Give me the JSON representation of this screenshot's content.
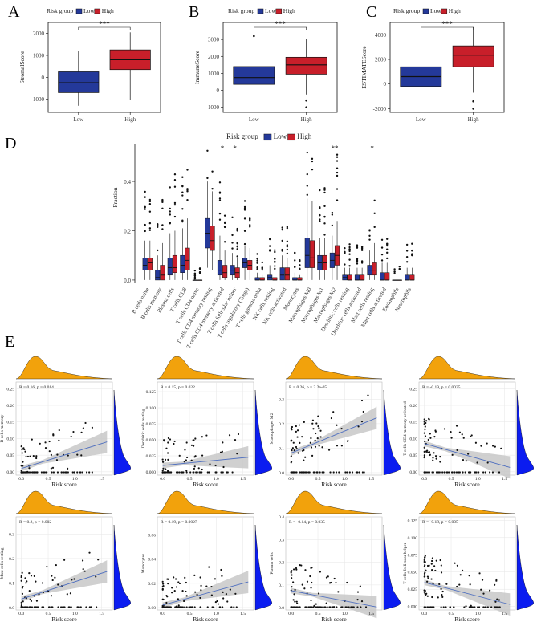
{
  "panels": {
    "A": "A",
    "B": "B",
    "C": "C",
    "D": "D",
    "E": "E"
  },
  "colors": {
    "low": "#24399a",
    "high": "#c81f2a",
    "density_x": "#f2a20c",
    "density_y": "#0b1cf0",
    "fit": "#4f6fbf",
    "band": "#c8c8c8"
  },
  "legend": {
    "title": "Risk group",
    "low": "Low",
    "high": "High"
  },
  "chart_data": [
    {
      "type": "box",
      "id": "A",
      "ylabel": "StromalScore",
      "categories": [
        "Low",
        "High"
      ],
      "significance": "***",
      "ylim": [
        -1600,
        2500
      ],
      "yticks": [
        -1000,
        0,
        1000,
        2000
      ],
      "boxes": [
        {
          "whislo": -1300,
          "q1": -700,
          "med": -250,
          "q3": 250,
          "whishi": 1200,
          "outliers": []
        },
        {
          "whislo": -1050,
          "q1": 350,
          "med": 800,
          "q3": 1250,
          "whishi": 2050,
          "outliers": []
        }
      ]
    },
    {
      "type": "box",
      "id": "B",
      "ylabel": "ImmuneScore",
      "categories": [
        "Low",
        "High"
      ],
      "significance": "***",
      "ylim": [
        -1300,
        4000
      ],
      "yticks": [
        -1000,
        0,
        1000,
        2000,
        3000
      ],
      "boxes": [
        {
          "whislo": -500,
          "q1": 350,
          "med": 750,
          "q3": 1400,
          "whishi": 2850,
          "outliers": [
            3200
          ]
        },
        {
          "whislo": -250,
          "q1": 950,
          "med": 1500,
          "q3": 1950,
          "whishi": 3050,
          "outliers": [
            -600,
            -1000
          ]
        }
      ]
    },
    {
      "type": "box",
      "id": "C",
      "ylabel": "ESTIMATEScore",
      "categories": [
        "Low",
        "High"
      ],
      "significance": "***",
      "ylim": [
        -2300,
        5000
      ],
      "yticks": [
        -2000,
        0,
        2000,
        4000
      ],
      "boxes": [
        {
          "whislo": -1700,
          "q1": -200,
          "med": 600,
          "q3": 1400,
          "whishi": 3600,
          "outliers": []
        },
        {
          "whislo": -700,
          "q1": 1400,
          "med": 2350,
          "q3": 3100,
          "whishi": 4600,
          "outliers": [
            -1400,
            -2000
          ]
        }
      ]
    },
    {
      "type": "box",
      "id": "D",
      "ylabel": "Fraction",
      "ylim": [
        -0.01,
        0.55
      ],
      "yticks": [
        0.0,
        0.2,
        0.4
      ],
      "categories": [
        "B cells naive",
        "B cells memory",
        "Plasma cells",
        "T cells CD8",
        "T cells CD4 naive",
        "T cells CD4 memory resting",
        "T cells CD4 memory activated",
        "T cells follicular helper",
        "T cells regulatory (Tregs)",
        "T cells gamma delta",
        "NK cells resting",
        "NK cells activated",
        "Monocytes",
        "Macrophages M0",
        "Macrophages M1",
        "Macrophages M2",
        "Dendritic cells resting",
        "Dendritic cells activated",
        "Mast cells resting",
        "Mast cells activated",
        "Eosinophils",
        "Neutrophils"
      ],
      "significance": [
        "",
        "",
        "",
        "",
        "",
        "",
        "*",
        "*",
        "",
        "",
        "",
        "",
        "",
        "",
        "",
        "**",
        "",
        "",
        "*",
        "",
        "",
        ""
      ],
      "low": [
        {
          "whislo": 0.0,
          "q1": 0.04,
          "med": 0.06,
          "q3": 0.09,
          "whishi": 0.16
        },
        {
          "whislo": 0.0,
          "q1": 0.0,
          "med": 0.01,
          "q3": 0.04,
          "whishi": 0.1
        },
        {
          "whislo": 0.0,
          "q1": 0.02,
          "med": 0.05,
          "q3": 0.09,
          "whishi": 0.19
        },
        {
          "whislo": 0.0,
          "q1": 0.03,
          "med": 0.06,
          "q3": 0.1,
          "whishi": 0.21
        },
        {
          "whislo": 0.0,
          "q1": 0.0,
          "med": 0.0,
          "q3": 0.0,
          "whishi": 0.0
        },
        {
          "whislo": 0.05,
          "q1": 0.13,
          "med": 0.19,
          "q3": 0.25,
          "whishi": 0.4
        },
        {
          "whislo": 0.0,
          "q1": 0.02,
          "med": 0.04,
          "q3": 0.08,
          "whishi": 0.18
        },
        {
          "whislo": 0.0,
          "q1": 0.02,
          "med": 0.04,
          "q3": 0.06,
          "whishi": 0.11
        },
        {
          "whislo": 0.0,
          "q1": 0.05,
          "med": 0.07,
          "q3": 0.09,
          "whishi": 0.14
        },
        {
          "whislo": 0.0,
          "q1": 0.0,
          "med": 0.0,
          "q3": 0.01,
          "whishi": 0.03
        },
        {
          "whislo": 0.0,
          "q1": 0.0,
          "med": 0.01,
          "q3": 0.02,
          "whishi": 0.06
        },
        {
          "whislo": 0.0,
          "q1": 0.0,
          "med": 0.02,
          "q3": 0.05,
          "whishi": 0.1
        },
        {
          "whislo": 0.0,
          "q1": 0.0,
          "med": 0.0,
          "q3": 0.01,
          "whishi": 0.03
        },
        {
          "whislo": 0.0,
          "q1": 0.05,
          "med": 0.1,
          "q3": 0.17,
          "whishi": 0.33
        },
        {
          "whislo": 0.0,
          "q1": 0.04,
          "med": 0.07,
          "q3": 0.1,
          "whishi": 0.17
        },
        {
          "whislo": 0.0,
          "q1": 0.05,
          "med": 0.08,
          "q3": 0.11,
          "whishi": 0.18
        },
        {
          "whislo": 0.0,
          "q1": 0.0,
          "med": 0.01,
          "q3": 0.02,
          "whishi": 0.05
        },
        {
          "whislo": 0.0,
          "q1": 0.0,
          "med": 0.0,
          "q3": 0.02,
          "whishi": 0.05
        },
        {
          "whislo": 0.0,
          "q1": 0.02,
          "med": 0.04,
          "q3": 0.06,
          "whishi": 0.12
        },
        {
          "whislo": 0.0,
          "q1": 0.0,
          "med": 0.0,
          "q3": 0.03,
          "whishi": 0.07
        },
        {
          "whislo": 0.0,
          "q1": 0.0,
          "med": 0.0,
          "q3": 0.0,
          "whishi": 0.0
        },
        {
          "whislo": 0.0,
          "q1": 0.0,
          "med": 0.0,
          "q3": 0.02,
          "whishi": 0.05
        }
      ],
      "high": [
        {
          "whislo": 0.0,
          "q1": 0.04,
          "med": 0.07,
          "q3": 0.09,
          "whishi": 0.16
        },
        {
          "whislo": 0.0,
          "q1": 0.0,
          "med": 0.02,
          "q3": 0.06,
          "whishi": 0.15
        },
        {
          "whislo": 0.0,
          "q1": 0.03,
          "med": 0.05,
          "q3": 0.1,
          "whishi": 0.2
        },
        {
          "whislo": 0.0,
          "q1": 0.04,
          "med": 0.08,
          "q3": 0.13,
          "whishi": 0.25
        },
        {
          "whislo": 0.0,
          "q1": 0.0,
          "med": 0.0,
          "q3": 0.0,
          "whishi": 0.0
        },
        {
          "whislo": 0.04,
          "q1": 0.12,
          "med": 0.16,
          "q3": 0.22,
          "whishi": 0.36
        },
        {
          "whislo": 0.0,
          "q1": 0.01,
          "med": 0.03,
          "q3": 0.06,
          "whishi": 0.12
        },
        {
          "whislo": 0.0,
          "q1": 0.01,
          "med": 0.03,
          "q3": 0.05,
          "whishi": 0.09
        },
        {
          "whislo": 0.0,
          "q1": 0.04,
          "med": 0.06,
          "q3": 0.08,
          "whishi": 0.13
        },
        {
          "whislo": 0.0,
          "q1": 0.0,
          "med": 0.0,
          "q3": 0.01,
          "whishi": 0.02
        },
        {
          "whislo": 0.0,
          "q1": 0.0,
          "med": 0.0,
          "q3": 0.01,
          "whishi": 0.04
        },
        {
          "whislo": 0.0,
          "q1": 0.0,
          "med": 0.02,
          "q3": 0.05,
          "whishi": 0.09
        },
        {
          "whislo": 0.0,
          "q1": 0.0,
          "med": 0.0,
          "q3": 0.01,
          "whishi": 0.02
        },
        {
          "whislo": 0.0,
          "q1": 0.05,
          "med": 0.09,
          "q3": 0.16,
          "whishi": 0.32
        },
        {
          "whislo": 0.0,
          "q1": 0.04,
          "med": 0.07,
          "q3": 0.1,
          "whishi": 0.17
        },
        {
          "whislo": 0.0,
          "q1": 0.06,
          "med": 0.1,
          "q3": 0.14,
          "whishi": 0.24
        },
        {
          "whislo": 0.0,
          "q1": 0.0,
          "med": 0.0,
          "q3": 0.02,
          "whishi": 0.05
        },
        {
          "whislo": 0.0,
          "q1": 0.0,
          "med": 0.0,
          "q3": 0.02,
          "whishi": 0.05
        },
        {
          "whislo": 0.0,
          "q1": 0.02,
          "med": 0.04,
          "q3": 0.07,
          "whishi": 0.15
        },
        {
          "whislo": 0.0,
          "q1": 0.0,
          "med": 0.0,
          "q3": 0.03,
          "whishi": 0.07
        },
        {
          "whislo": 0.0,
          "q1": 0.0,
          "med": 0.0,
          "q3": 0.0,
          "whishi": 0.0
        },
        {
          "whislo": 0.0,
          "q1": 0.0,
          "med": 0.0,
          "q3": 0.02,
          "whishi": 0.05
        }
      ]
    },
    {
      "type": "scatter",
      "id": "E1",
      "xlabel": "Risk score",
      "ylabel": "B cells memory",
      "annotation": "R = 0.16, p = 0.014",
      "xlim": [
        -0.1,
        1.7
      ],
      "ylim": [
        -0.01,
        0.27
      ],
      "xticks": [
        0.0,
        0.5,
        1.0,
        1.5
      ],
      "xticklabels": [
        "0.0",
        "0.5",
        "1.0",
        "1.5"
      ],
      "yticks": [
        0.0,
        0.05,
        0.1,
        0.15,
        0.2,
        0.25
      ],
      "yticklabels": [
        "0.00",
        "0.05",
        "0.10",
        "0.15",
        "0.20",
        "0.25"
      ],
      "fit": {
        "intercept": 0.01,
        "slope": 0.05
      }
    },
    {
      "type": "scatter",
      "id": "E2",
      "xlabel": "Risk score",
      "ylabel": "Dendritic cells resting",
      "annotation": "R = 0.15, p = 0.022",
      "xlim": [
        -0.1,
        1.7
      ],
      "ylim": [
        -0.005,
        0.14
      ],
      "xticks": [
        0.0,
        0.5,
        1.0,
        1.5
      ],
      "xticklabels": [
        "0.0",
        "0.5",
        "1.0",
        "1.5"
      ],
      "yticks": [
        0.0,
        0.025,
        0.05,
        0.075,
        0.1,
        0.125
      ],
      "yticklabels": [
        "0.000",
        "0.025",
        "0.050",
        "0.075",
        "0.100",
        "0.125"
      ],
      "fit": {
        "intercept": 0.01,
        "slope": 0.008
      }
    },
    {
      "type": "scatter",
      "id": "E3",
      "xlabel": "Risk score",
      "ylabel": "Macrophages M2",
      "annotation": "R = 0.26, p = 3.2e-05",
      "xlim": [
        -0.1,
        1.7
      ],
      "ylim": [
        -0.01,
        0.37
      ],
      "xticks": [
        0.0,
        0.5,
        1.0,
        1.5
      ],
      "xticklabels": [
        "0.0",
        "0.5",
        "1.0",
        "1.5"
      ],
      "yticks": [
        0.0,
        0.1,
        0.2,
        0.3
      ],
      "yticklabels": [
        "0.0",
        "0.1",
        "0.2",
        "0.3"
      ],
      "fit": {
        "intercept": 0.08,
        "slope": 0.09
      }
    },
    {
      "type": "scatter",
      "id": "E4",
      "xlabel": "Risk score",
      "ylabel": "T cells CD4 memory activated",
      "annotation": "R = -0.19, p = 0.0035",
      "xlim": [
        -0.1,
        1.7
      ],
      "ylim": [
        -0.01,
        0.27
      ],
      "xticks": [
        0.0,
        0.5,
        1.0,
        1.5
      ],
      "xticklabels": [
        "0.0",
        "0.5",
        "1.0",
        "1.5"
      ],
      "yticks": [
        0.0,
        0.05,
        0.1,
        0.15,
        0.2,
        0.25
      ],
      "yticklabels": [
        "0.00",
        "0.05",
        "0.10",
        "0.15",
        "0.20",
        "0.25"
      ],
      "fit": {
        "intercept": 0.085,
        "slope": -0.045
      }
    },
    {
      "type": "scatter",
      "id": "E5",
      "xlabel": "Risk score",
      "ylabel": "Mast cells resting",
      "annotation": "R = 0.2, p = 0.002",
      "xlim": [
        -0.1,
        1.7
      ],
      "ylim": [
        -0.01,
        0.37
      ],
      "xticks": [
        0.0,
        0.5,
        1.0,
        1.5
      ],
      "xticklabels": [
        "0.0",
        "0.5",
        "1.0",
        "1.5"
      ],
      "yticks": [
        0.0,
        0.1,
        0.2,
        0.3
      ],
      "yticklabels": [
        "0.0",
        "0.1",
        "0.2",
        "0.3"
      ],
      "fit": {
        "intercept": 0.035,
        "slope": 0.07
      }
    },
    {
      "type": "scatter",
      "id": "E6",
      "xlabel": "Risk score",
      "ylabel": "Monocytes",
      "annotation": "R = 0.19, p = 0.0027",
      "xlim": [
        -0.1,
        1.7
      ],
      "ylim": [
        -0.002,
        0.075
      ],
      "xticks": [
        0.0,
        0.5,
        1.0,
        1.5
      ],
      "xticklabels": [
        "0.0",
        "0.5",
        "1.0",
        "1.5"
      ],
      "yticks": [
        0.0,
        0.02,
        0.04,
        0.06
      ],
      "yticklabels": [
        "0.00",
        "0.02",
        "0.04",
        "0.06"
      ],
      "fit": {
        "intercept": 0.002,
        "slope": 0.012
      }
    },
    {
      "type": "scatter",
      "id": "E7",
      "xlabel": "Risk score",
      "ylabel": "Plasma cells",
      "annotation": "R = -0.14, p = 0.035",
      "xlim": [
        -0.1,
        1.7
      ],
      "ylim": [
        -0.01,
        0.4
      ],
      "xticks": [
        0.0,
        0.5,
        1.0,
        1.5
      ],
      "xticklabels": [
        "0.0",
        "0.5",
        "1.0",
        "1.5"
      ],
      "yticks": [
        0.0,
        0.1,
        0.2,
        0.3,
        0.4
      ],
      "yticklabels": [
        "0.0",
        "0.1",
        "0.2",
        "0.3",
        "0.4"
      ],
      "fit": {
        "intercept": 0.075,
        "slope": -0.045
      }
    },
    {
      "type": "scatter",
      "id": "E8",
      "xlabel": "Risk score",
      "ylabel": "T cells follicular helper",
      "annotation": "R = -0.18, p = 0.005",
      "xlim": [
        -0.1,
        1.7
      ],
      "ylim": [
        -0.005,
        0.13
      ],
      "xticks": [
        0.0,
        0.5,
        1.0,
        1.5
      ],
      "xticklabels": [
        "0.0",
        "0.5",
        "1.0",
        "1.5"
      ],
      "yticks": [
        0.0,
        0.025,
        0.05,
        0.075,
        0.1,
        0.125
      ],
      "yticklabels": [
        "0.000",
        "0.025",
        "0.050",
        "0.075",
        "0.100",
        "0.125"
      ],
      "fit": {
        "intercept": 0.035,
        "slope": -0.02
      }
    }
  ]
}
